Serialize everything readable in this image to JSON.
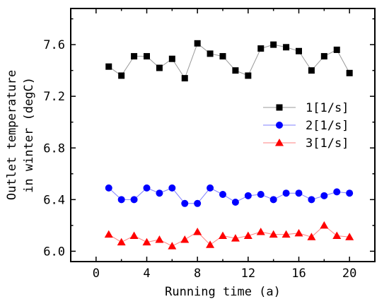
{
  "chart_data": {
    "type": "line",
    "title": "",
    "xlabel": "Running time (a)",
    "ylabel_lines": [
      "Outlet temperature",
      "in winter (degC)"
    ],
    "xlim": [
      -2,
      22
    ],
    "ylim": [
      5.92,
      7.88
    ],
    "x_ticks": [
      0,
      4,
      8,
      12,
      16,
      20
    ],
    "y_ticks": [
      6.0,
      6.4,
      6.8,
      7.2,
      7.6
    ],
    "x_tick_labels": [
      "0",
      "4",
      "8",
      "12",
      "16",
      "20"
    ],
    "y_tick_labels": [
      "6.0",
      "6.4",
      "6.8",
      "7.2",
      "7.6"
    ],
    "x": [
      1,
      2,
      3,
      4,
      5,
      6,
      7,
      8,
      9,
      10,
      11,
      12,
      13,
      14,
      15,
      16,
      17,
      18,
      19,
      20
    ],
    "legend_position": "center-right",
    "grid": false,
    "series": [
      {
        "name": "1[1/s]",
        "color": "#000000",
        "line_color": "#999999",
        "marker": "square",
        "values": [
          7.43,
          7.36,
          7.51,
          7.51,
          7.42,
          7.49,
          7.34,
          7.61,
          7.53,
          7.51,
          7.4,
          7.36,
          7.57,
          7.6,
          7.58,
          7.55,
          7.4,
          7.51,
          7.56,
          7.38
        ]
      },
      {
        "name": "2[1/s]",
        "color": "#0000ff",
        "line_color": "#8080ff",
        "marker": "circle",
        "values": [
          6.49,
          6.4,
          6.4,
          6.49,
          6.45,
          6.49,
          6.37,
          6.37,
          6.49,
          6.44,
          6.38,
          6.43,
          6.44,
          6.4,
          6.45,
          6.45,
          6.4,
          6.43,
          6.46,
          6.45
        ]
      },
      {
        "name": "3[1/s]",
        "color": "#ff0000",
        "line_color": "#ff8080",
        "marker": "triangle",
        "values": [
          6.13,
          6.07,
          6.12,
          6.07,
          6.09,
          6.04,
          6.09,
          6.15,
          6.05,
          6.12,
          6.1,
          6.12,
          6.15,
          6.13,
          6.13,
          6.14,
          6.11,
          6.2,
          6.12,
          6.11
        ]
      }
    ]
  }
}
